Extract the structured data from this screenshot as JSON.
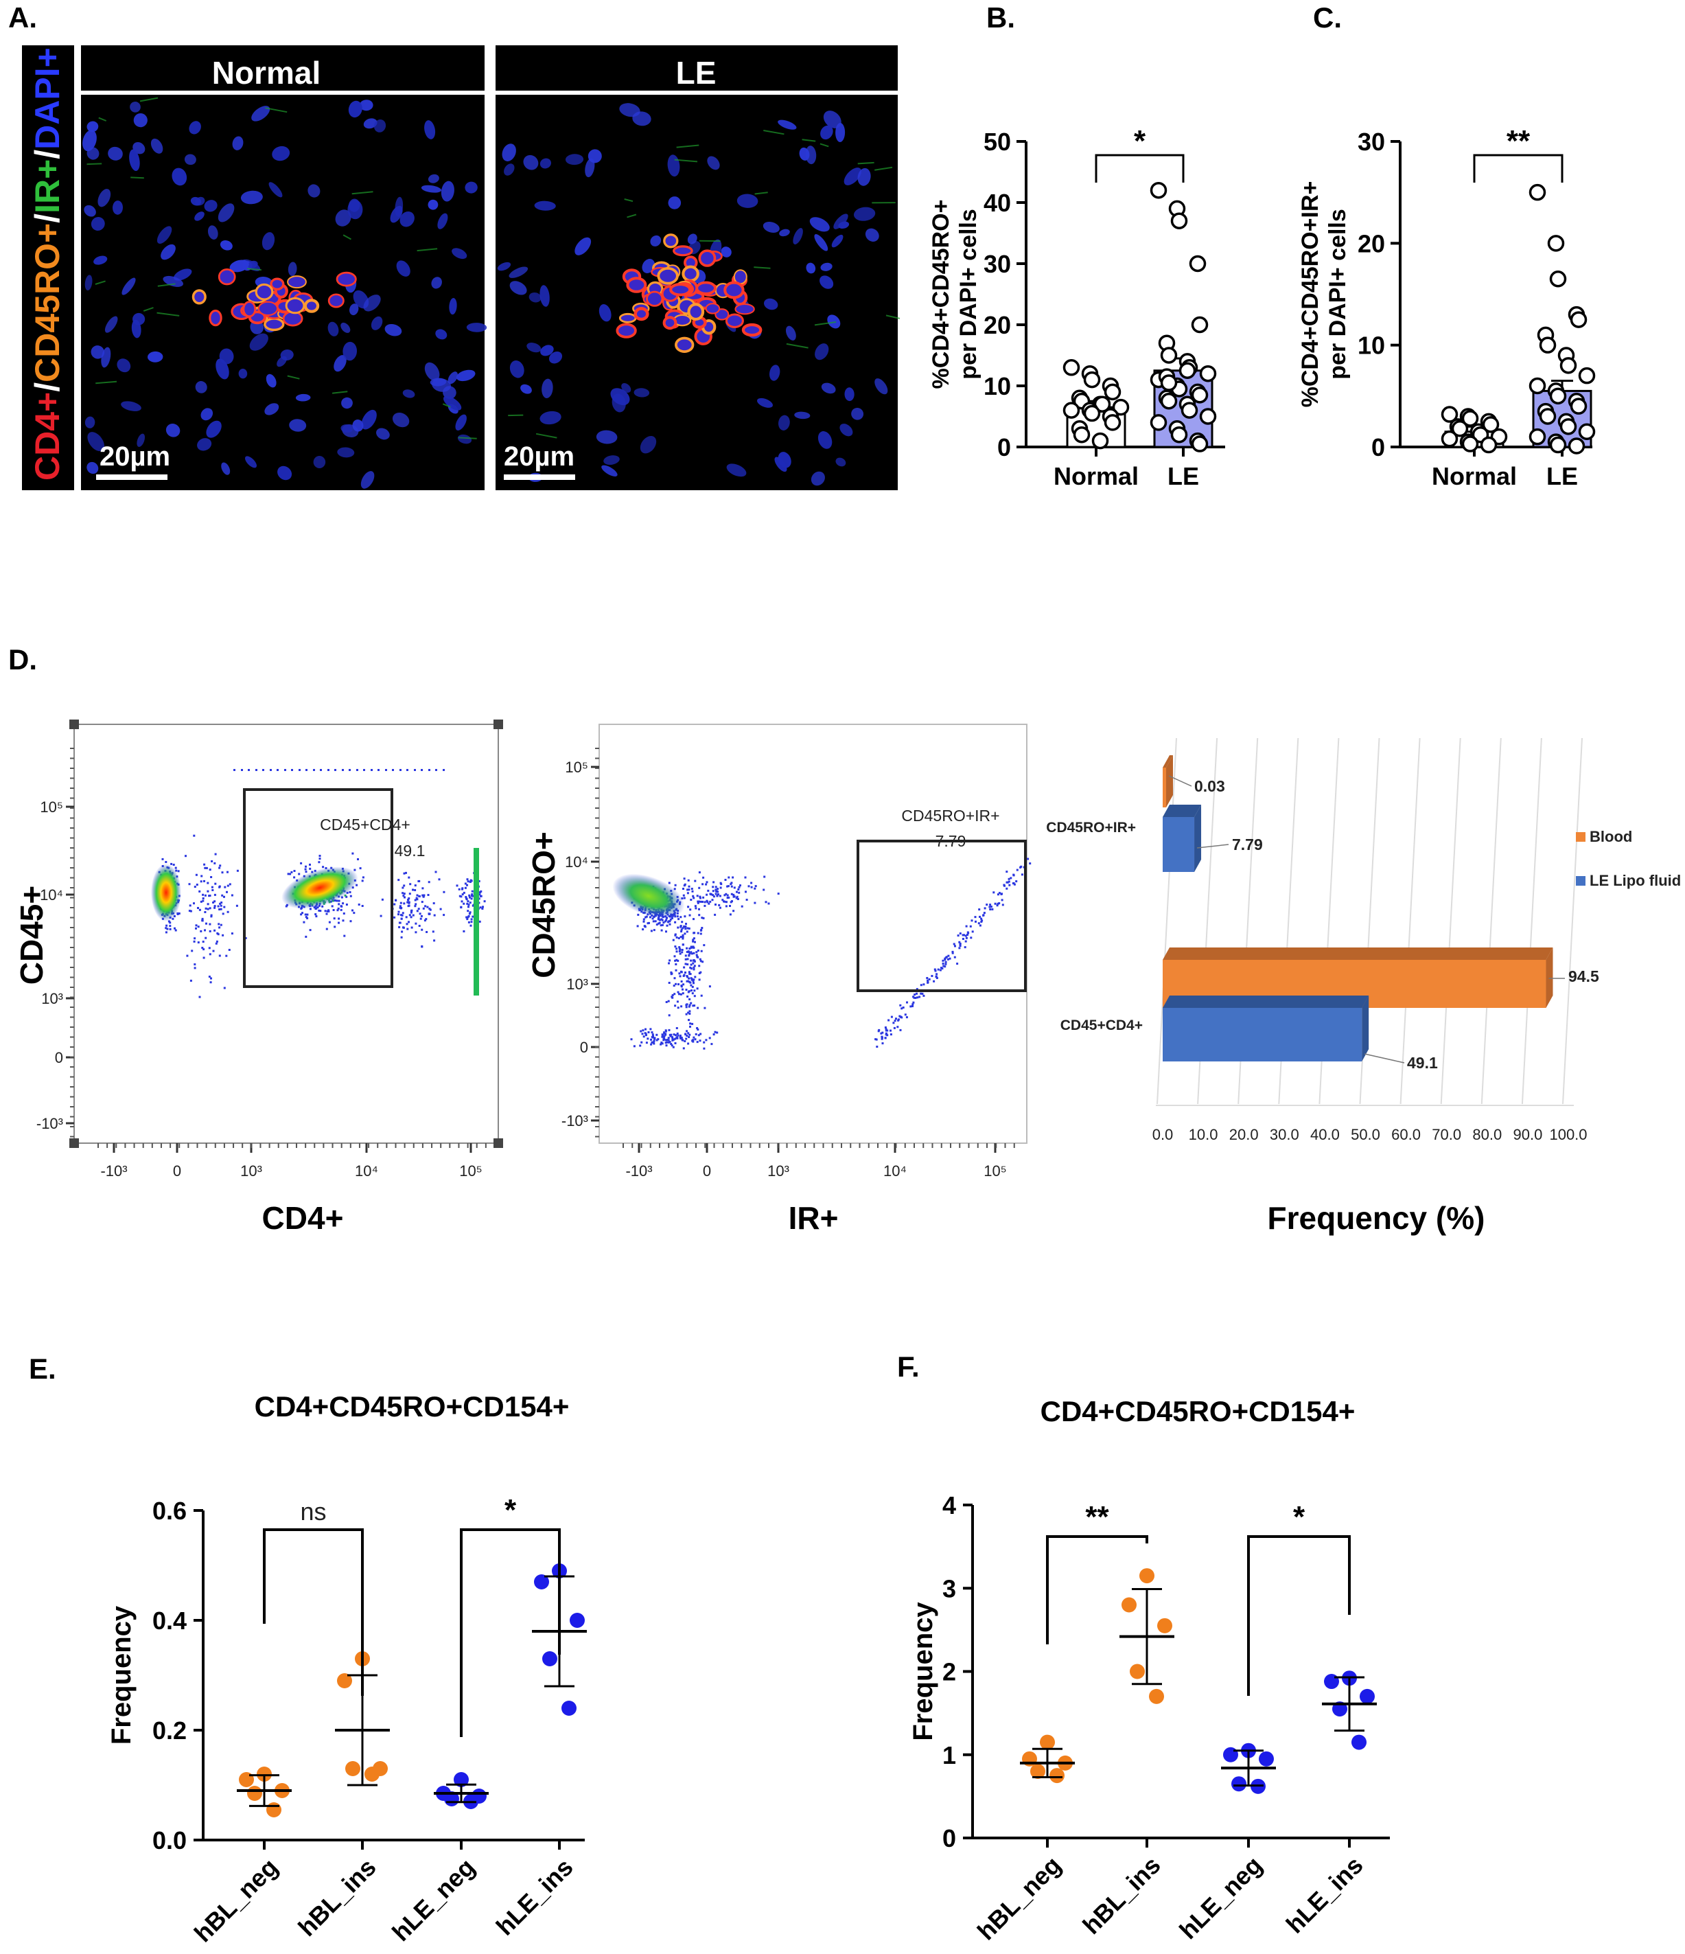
{
  "panel_labels": {
    "a": "A.",
    "b": "B.",
    "c": "C.",
    "d": "D.",
    "e": "E.",
    "f": "F."
  },
  "panel_a": {
    "stain_label": {
      "cd4": "CD4+",
      "sep1": "/",
      "cd45ro": "CD45RO+",
      "sep2": "/",
      "ir": "IR+",
      "sep3": "/",
      "dapi": "DAPI+"
    },
    "normal_header": "Normal",
    "le_header": "LE",
    "scale_bar_normal": "20µm",
    "scale_bar_le": "20µm",
    "colors": {
      "cd4": "#e8202a",
      "cd45ro": "#f28a1e",
      "ir": "#2fbf3b",
      "dapi": "#2a3bff"
    }
  },
  "chart_data": [
    {
      "id": "B",
      "type": "bar",
      "categories": [
        "Normal",
        "LE"
      ],
      "values": [
        6.5,
        12.5
      ],
      "error_upper": [
        7.5,
        14.5
      ],
      "ylabel_line1": "%CD4+CD45RO+",
      "ylabel_line2": "per DAPI+ cells",
      "ylim": [
        0,
        50
      ],
      "yticks": [
        0,
        10,
        20,
        30,
        40,
        50
      ],
      "significance": "*",
      "bar_colors": [
        "#ffffff",
        "#9c9ff0"
      ],
      "points": [
        [
          13,
          12,
          11,
          10,
          9,
          8,
          7.5,
          7,
          7,
          6.5,
          6,
          6,
          5.5,
          5,
          4,
          3,
          2,
          1
        ],
        [
          42,
          39,
          37,
          30,
          20,
          17,
          15,
          14,
          13,
          12,
          11,
          10,
          9.5,
          9,
          8.5,
          8,
          7.5,
          7,
          6,
          5,
          4,
          3,
          2,
          1,
          0.5,
          11.5,
          10.5,
          12.5
        ]
      ]
    },
    {
      "id": "C",
      "type": "bar",
      "categories": [
        "Normal",
        "LE"
      ],
      "values": [
        1.5,
        5.5
      ],
      "error_upper": [
        2.0,
        6.5
      ],
      "ylabel_line1": "%CD4+CD45RO+IR+",
      "ylabel_line2": "per DAPI+ cells",
      "ylim": [
        0,
        30
      ],
      "yticks": [
        0,
        10,
        20,
        30
      ],
      "significance": "**",
      "bar_colors": [
        "#ffffff",
        "#9c9ff0"
      ],
      "points": [
        [
          3.2,
          3,
          2.8,
          2.5,
          2.2,
          2,
          1.8,
          1.5,
          1.2,
          1,
          0.8,
          0.5,
          0.3,
          0.2
        ],
        [
          25,
          20,
          16.5,
          13,
          12.5,
          11,
          10,
          9,
          8,
          7,
          6,
          5.5,
          5,
          4.5,
          4,
          3.5,
          3,
          2.5,
          2,
          1.5,
          1,
          0.5,
          0.2,
          0.1
        ]
      ]
    },
    {
      "id": "D-bar",
      "type": "bar",
      "orientation": "horizontal",
      "categories": [
        "CD45RO+IR+",
        "CD45+CD4+"
      ],
      "series": [
        {
          "name": "Blood",
          "values": [
            0.03,
            94.5
          ],
          "color": "#ef8535"
        },
        {
          "name": "LE Lipo fluid",
          "values": [
            7.79,
            49.1
          ],
          "color": "#4472c4"
        }
      ],
      "value_labels": [
        [
          "0.03",
          "94.5"
        ],
        [
          "7.79",
          "49.1"
        ]
      ],
      "xlabel": "Frequency (%)",
      "xlim": [
        0,
        100
      ],
      "xticks": [
        "0.0",
        "10.0",
        "20.0",
        "30.0",
        "40.0",
        "50.0",
        "60.0",
        "70.0",
        "80.0",
        "90.0",
        "100.0"
      ],
      "legend": "right"
    },
    {
      "id": "E",
      "type": "scatter",
      "title": "CD4+CD45RO+CD154+",
      "categories": [
        "hBL_neg",
        "hBL_ins",
        "hLE_neg",
        "hLE_ins"
      ],
      "ylabel": "Frequency",
      "ylim": [
        0,
        0.6
      ],
      "yticks": [
        "0.0",
        "0.2",
        "0.4",
        "0.6"
      ],
      "colors": [
        "#f07f1c",
        "#f07f1c",
        "#1c1ce8",
        "#1c1ce8"
      ],
      "means": [
        0.09,
        0.2,
        0.085,
        0.38
      ],
      "sd": [
        0.028,
        0.1,
        0.016,
        0.1
      ],
      "points": [
        [
          0.12,
          0.11,
          0.09,
          0.085,
          0.055
        ],
        [
          0.33,
          0.29,
          0.13,
          0.13,
          0.12
        ],
        [
          0.11,
          0.085,
          0.08,
          0.075,
          0.07
        ],
        [
          0.49,
          0.47,
          0.4,
          0.33,
          0.24
        ]
      ],
      "comparisons": [
        {
          "from": 0,
          "to": 1,
          "label": "ns"
        },
        {
          "from": 2,
          "to": 3,
          "label": "*"
        }
      ]
    },
    {
      "id": "F",
      "type": "scatter",
      "title": "CD4+CD45RO+CD154+",
      "categories": [
        "hBL_neg",
        "hBL_ins",
        "hLE_neg",
        "hLE_ins"
      ],
      "ylabel": "Frequency",
      "ylim": [
        0,
        4
      ],
      "yticks": [
        "0",
        "1",
        "2",
        "3",
        "4"
      ],
      "colors": [
        "#f07f1c",
        "#f07f1c",
        "#1c1ce8",
        "#1c1ce8"
      ],
      "means": [
        0.9,
        2.42,
        0.84,
        1.61
      ],
      "sd": [
        0.17,
        0.57,
        0.21,
        0.32
      ],
      "points": [
        [
          1.15,
          0.95,
          0.9,
          0.8,
          0.75
        ],
        [
          3.15,
          2.8,
          2.55,
          2.0,
          1.7
        ],
        [
          1.05,
          1.0,
          0.95,
          0.65,
          0.62
        ],
        [
          1.92,
          1.88,
          1.7,
          1.55,
          1.15
        ]
      ],
      "comparisons": [
        {
          "from": 0,
          "to": 1,
          "label": "**"
        },
        {
          "from": 2,
          "to": 3,
          "label": "*"
        }
      ]
    }
  ],
  "flow": {
    "plot1": {
      "ylabel": "CD45+",
      "xlabel": "CD4+",
      "gate_label": "CD45+CD4+",
      "gate_value": "49.1",
      "yticks": [
        "10⁵",
        "10⁴",
        "10³",
        "0",
        "-10³"
      ],
      "xticks": [
        "-10³",
        "0",
        "10³",
        "10⁴",
        "10⁵"
      ]
    },
    "plot2": {
      "ylabel": "CD45RO+",
      "xlabel": "IR+",
      "gate_label": "CD45RO+IR+",
      "gate_value": "7.79",
      "yticks": [
        "10⁵",
        "10⁴",
        "10³",
        "0",
        "-10³"
      ],
      "xticks": [
        "-10³",
        "0",
        "10³",
        "10⁴",
        "10⁵"
      ]
    }
  }
}
